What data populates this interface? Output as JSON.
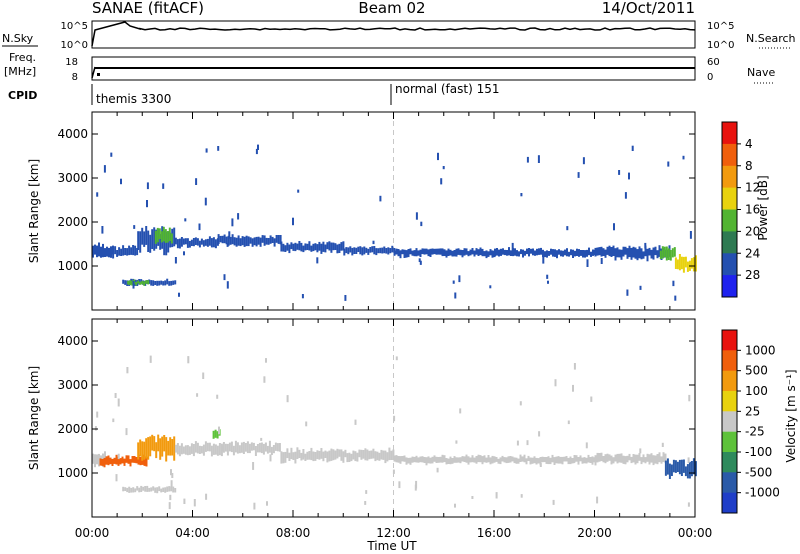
{
  "header": {
    "station": "SANAE (fitACF)",
    "beam": "Beam 02",
    "date": "14/Oct/2011"
  },
  "labels": {
    "nsky": "N.Sky",
    "nsearch": "N.Search",
    "freq_line1": "Freq.",
    "freq_line2": "[MHz]",
    "nave": "Nave",
    "cpid": "CPID",
    "ylabel": "Slant Range [km]",
    "xlabel": "Time UT",
    "power_label": "Power [dB]",
    "velocity_label": "Velocity [m s⁻¹]"
  },
  "noise_panel": {
    "left_ticks": [
      "10^5",
      "10^0"
    ],
    "right_ticks": [
      "10^5",
      "10^0"
    ]
  },
  "freq_panel": {
    "left_ticks": [
      "18",
      "8"
    ],
    "right_ticks": [
      "60",
      "0"
    ]
  },
  "cpid_segments": [
    {
      "label": "themis 3300",
      "start_hour": 0.0
    },
    {
      "label": "normal (fast) 151",
      "start_hour": 12.0
    }
  ],
  "chart_data": [
    {
      "type": "heatmap",
      "name": "power",
      "xlabel": "Time UT",
      "ylabel": "Slant Range [km]",
      "xlim": [
        0,
        24
      ],
      "ylim": [
        0,
        4500
      ],
      "x_ticks": [
        "00:00",
        "04:00",
        "08:00",
        "12:00",
        "16:00",
        "20:00",
        "00:00"
      ],
      "y_ticks": [
        1000,
        2000,
        3000,
        4000
      ],
      "colorbar": {
        "label": "Power [dB]",
        "ticks": [
          "4",
          "8",
          "12",
          "16",
          "20",
          "24",
          "28"
        ],
        "colors": [
          "#1f22ee",
          "#2450b0",
          "#2e7a52",
          "#52b432",
          "#e8d20e",
          "#f29a0e",
          "#f05f0c",
          "#e8120e"
        ]
      },
      "bands": [
        {
          "t0": 0.0,
          "t1": 0.8,
          "r0": 1150,
          "r1": 1500,
          "level": 1
        },
        {
          "t0": 0.8,
          "t1": 1.8,
          "r0": 1200,
          "r1": 1450,
          "level": 1
        },
        {
          "t0": 1.8,
          "t1": 3.3,
          "r0": 1300,
          "r1": 1900,
          "level": 1
        },
        {
          "t0": 2.5,
          "t1": 3.2,
          "r0": 1500,
          "r1": 1850,
          "level": 3
        },
        {
          "t0": 3.3,
          "t1": 5.0,
          "r0": 1400,
          "r1": 1650,
          "level": 1
        },
        {
          "t0": 5.0,
          "t1": 7.5,
          "r0": 1450,
          "r1": 1700,
          "level": 1
        },
        {
          "t0": 7.5,
          "t1": 10.0,
          "r0": 1300,
          "r1": 1550,
          "level": 1
        },
        {
          "t0": 10.0,
          "t1": 12.0,
          "r0": 1250,
          "r1": 1450,
          "level": 1
        },
        {
          "t0": 12.0,
          "t1": 16.0,
          "r0": 1200,
          "r1": 1400,
          "level": 1
        },
        {
          "t0": 16.0,
          "t1": 20.0,
          "r0": 1200,
          "r1": 1400,
          "level": 1
        },
        {
          "t0": 20.0,
          "t1": 23.0,
          "r0": 1150,
          "r1": 1450,
          "level": 1
        },
        {
          "t0": 22.6,
          "t1": 23.2,
          "r0": 1100,
          "r1": 1450,
          "level": 3
        },
        {
          "t0": 23.2,
          "t1": 24.0,
          "r0": 850,
          "r1": 1250,
          "level": 4
        },
        {
          "t0": 1.2,
          "t1": 3.3,
          "r0": 550,
          "r1": 700,
          "level": 1
        },
        {
          "t0": 1.4,
          "t1": 2.2,
          "r0": 560,
          "r1": 680,
          "level": 3
        }
      ]
    },
    {
      "type": "heatmap",
      "name": "velocity",
      "xlabel": "Time UT",
      "ylabel": "Slant Range [km]",
      "xlim": [
        0,
        24
      ],
      "ylim": [
        0,
        4500
      ],
      "x_ticks": [
        "00:00",
        "04:00",
        "08:00",
        "12:00",
        "16:00",
        "20:00",
        "00:00"
      ],
      "y_ticks": [
        1000,
        2000,
        3000,
        4000
      ],
      "colorbar": {
        "label": "Velocity [m s⁻¹]",
        "ticks": [
          "1000",
          "500",
          "100",
          "25",
          "-25",
          "-100",
          "-500",
          "-1000"
        ],
        "colors": [
          "#1f3ec8",
          "#2a5aa8",
          "#2e8a5c",
          "#5ec23a",
          "#c8c8c8",
          "#e8d20e",
          "#f29a0e",
          "#f05f0c",
          "#e8120e"
        ]
      },
      "bands": [
        {
          "t0": 0.0,
          "t1": 0.5,
          "r0": 1150,
          "r1": 1500,
          "level": 4
        },
        {
          "t0": 0.3,
          "t1": 2.2,
          "r0": 1150,
          "r1": 1400,
          "level": 7
        },
        {
          "t0": 1.8,
          "t1": 3.3,
          "r0": 1300,
          "r1": 1900,
          "level": 6
        },
        {
          "t0": 3.3,
          "t1": 7.5,
          "r0": 1400,
          "r1": 1700,
          "level": 4
        },
        {
          "t0": 7.5,
          "t1": 12.0,
          "r0": 1250,
          "r1": 1550,
          "level": 4
        },
        {
          "t0": 12.0,
          "t1": 20.0,
          "r0": 1200,
          "r1": 1400,
          "level": 4
        },
        {
          "t0": 20.0,
          "t1": 22.8,
          "r0": 1200,
          "r1": 1450,
          "level": 4
        },
        {
          "t0": 22.8,
          "t1": 24.0,
          "r0": 900,
          "r1": 1300,
          "level": 1
        },
        {
          "t0": 1.2,
          "t1": 3.3,
          "r0": 550,
          "r1": 700,
          "level": 4
        },
        {
          "t0": 4.8,
          "t1": 5.1,
          "r0": 1800,
          "r1": 2000,
          "level": 3
        }
      ]
    }
  ]
}
